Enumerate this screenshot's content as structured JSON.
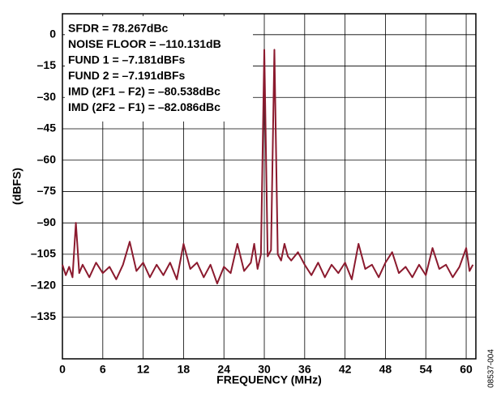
{
  "chart_data": {
    "type": "line",
    "xlabel": "FREQUENCY (MHz)",
    "ylabel": "(dBFS)",
    "figure_id": "08537-004",
    "annotations": [
      "SFDR = 78.267dBc",
      "NOISE FLOOR = –110.131dB",
      "FUND 1 = –7.181dBFs",
      "FUND 2 = –7.191dBFs",
      "IMD (2F1 – F2) = –80.538dBc",
      "IMD (2F2 – F1) = –82.086dBc"
    ],
    "xlim": [
      0,
      61.44
    ],
    "xticks": [
      0,
      6,
      12,
      18,
      24,
      30,
      36,
      42,
      48,
      54,
      60
    ],
    "ylim": [
      -155,
      10
    ],
    "yticks": [
      0,
      {
        "value": -15,
        "label": "–15"
      },
      {
        "value": -30,
        "label": "–30"
      },
      {
        "value": -45,
        "label": "–45"
      },
      {
        "value": -60,
        "label": "–60"
      },
      {
        "value": -75,
        "label": "–75"
      },
      {
        "value": -90,
        "label": "–90"
      },
      {
        "value": -105,
        "label": "–105"
      },
      {
        "value": -120,
        "label": "–120"
      },
      {
        "value": -135,
        "label": "–135"
      }
    ],
    "grid": true,
    "x": [
      0,
      0.5,
      1,
      1.5,
      2,
      2.5,
      3,
      4,
      5,
      6,
      7,
      8,
      9,
      10,
      11,
      12,
      13,
      14,
      15,
      16,
      17,
      18,
      19,
      20,
      21,
      22,
      23,
      24,
      25,
      26,
      27,
      28,
      28.5,
      29,
      29.5,
      30,
      30.5,
      31,
      31.5,
      32,
      32.5,
      33,
      33.5,
      34,
      35,
      36,
      37,
      38,
      39,
      40,
      41,
      42,
      43,
      44,
      45,
      46,
      47,
      48,
      49,
      50,
      51,
      52,
      53,
      54,
      55,
      56,
      57,
      58,
      59,
      60,
      60.5,
      61
    ],
    "series": [
      {
        "color": "#8b1a2e",
        "values": [
          -110,
          -115,
          -111,
          -116,
          -90,
          -114,
          -110,
          -116,
          -109,
          -114,
          -111,
          -117,
          -110,
          -99,
          -113,
          -109,
          -116,
          -110,
          -115,
          -109,
          -117,
          -100,
          -112,
          -109,
          -116,
          -110,
          -119,
          -111,
          -114,
          -100,
          -113,
          -109,
          -100,
          -112,
          -105,
          -7.181,
          -106,
          -103,
          -7.191,
          -105,
          -108,
          -100,
          -106,
          -108,
          -104,
          -110,
          -115,
          -109,
          -116,
          -110,
          -114,
          -109,
          -117,
          -100,
          -112,
          -110,
          -116,
          -109,
          -104,
          -114,
          -111,
          -116,
          -110,
          -115,
          -102,
          -112,
          -110,
          -116,
          -111,
          -102,
          -113,
          -110
        ]
      }
    ]
  }
}
